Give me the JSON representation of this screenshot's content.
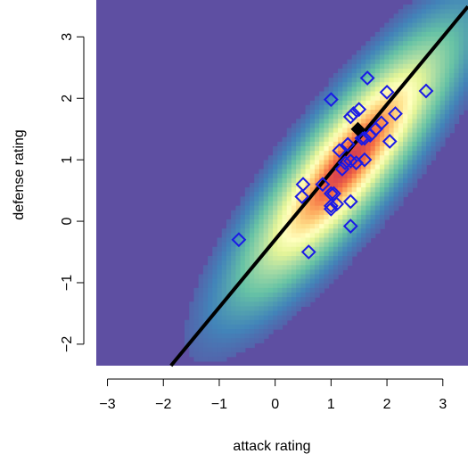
{
  "chart_data": {
    "type": "scatter",
    "title": "",
    "xlabel": "attack rating",
    "ylabel": "defense rating",
    "xlim": [
      -3.2,
      3.45
    ],
    "ylim": [
      -2.35,
      3.6
    ],
    "x_ticks": [
      -3,
      -2,
      -1,
      0,
      1,
      2,
      3
    ],
    "y_ticks": [
      -2,
      -1,
      0,
      1,
      2,
      3
    ],
    "x_tick_labels": [
      "−3",
      "−2",
      "−1",
      "0",
      "1",
      "2",
      "3"
    ],
    "y_tick_labels": [
      "−2",
      "−1",
      "0",
      "1",
      "2",
      "3"
    ],
    "grid": false,
    "legend": "none",
    "background": {
      "kind": "density-heatmap",
      "colormap": "spectral",
      "center": [
        1.3,
        0.95
      ],
      "sd": [
        0.85,
        0.95
      ],
      "correlation": 0.86
    },
    "regression_line": {
      "intercept": -0.3,
      "slope": 1.1,
      "color": "#000000"
    },
    "highlight_point": {
      "x": 1.48,
      "y": 1.5,
      "color": "#000000"
    },
    "points": {
      "marker": "open-diamond",
      "color": "#1a1ae6",
      "x": [
        -0.65,
        0.6,
        0.48,
        0.5,
        0.85,
        1.0,
        1.0,
        1.05,
        1.1,
        1.15,
        1.2,
        1.25,
        1.3,
        1.35,
        1.35,
        1.4,
        1.35,
        1.45,
        1.5,
        1.55,
        1.6,
        1.6,
        1.65,
        1.7,
        1.8,
        1.9,
        2.0,
        2.05,
        2.15,
        2.7,
        1.0,
        1.35,
        1.0
      ],
      "y": [
        -0.3,
        -0.5,
        0.4,
        0.6,
        0.6,
        0.2,
        0.45,
        0.45,
        0.28,
        1.15,
        0.85,
        0.95,
        1.25,
        0.32,
        -0.08,
        1.75,
        1.7,
        0.95,
        1.82,
        1.35,
        1.0,
        1.35,
        2.33,
        1.4,
        1.5,
        1.6,
        2.1,
        1.3,
        1.75,
        2.12,
        1.98,
        0.98,
        0.25
      ]
    }
  }
}
